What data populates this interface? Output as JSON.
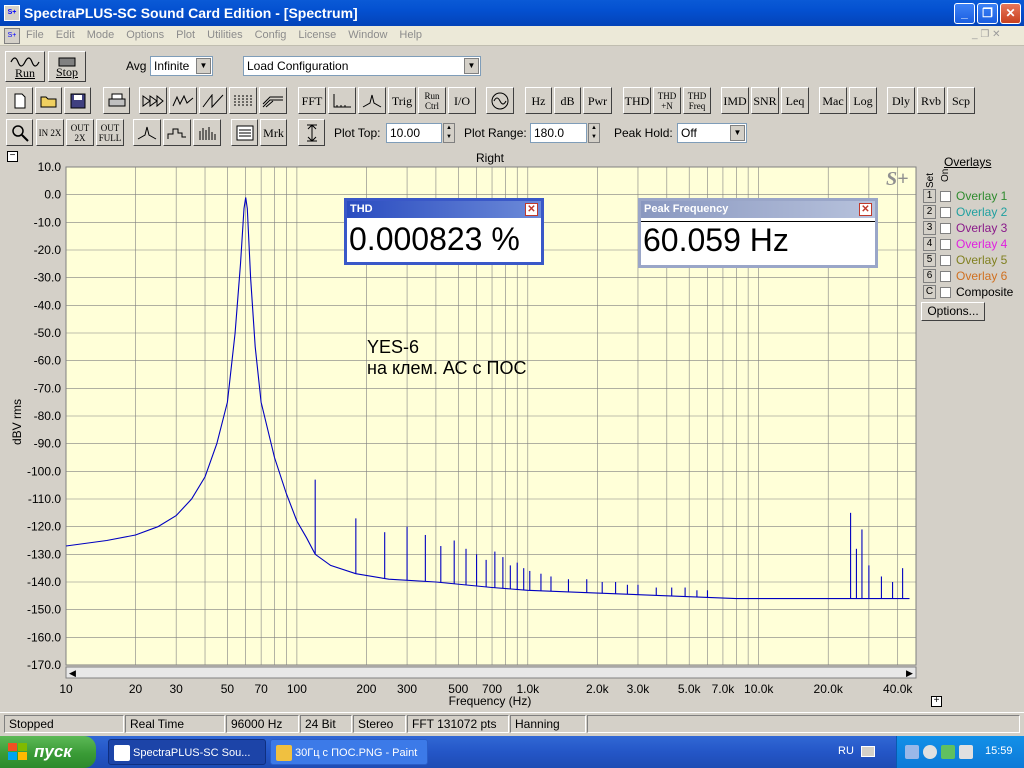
{
  "window": {
    "title": "SpectraPLUS-SC Sound Card Edition - [Spectrum]",
    "app_icon": "spectraplus-icon",
    "min_label": "_",
    "max_label": "❐",
    "close_label": "✕"
  },
  "menu": {
    "items": [
      "File",
      "Edit",
      "Mode",
      "Options",
      "Plot",
      "Utilities",
      "Config",
      "License",
      "Window",
      "Help"
    ],
    "mdi_controls": "_ ❐ ✕"
  },
  "toolbar1": {
    "run_label": "Run",
    "stop_label": "Stop",
    "avg_label": "Avg",
    "avg_value": "Infinite",
    "config_value": "Load Configuration"
  },
  "toolbar2": {
    "buttons": [
      "FFT",
      "Trig",
      "Run Ctrl",
      "I/O",
      "Hz",
      "dB",
      "Pwr",
      "THD",
      "THD +N",
      "THD Freq",
      "IMD",
      "SNR",
      "Leq",
      "Mac",
      "Log",
      "Dly",
      "Rvb",
      "Scp"
    ]
  },
  "toolbar3": {
    "zoom_in": "IN 2X",
    "zoom_out": "OUT 2X",
    "zoom_full": "OUT FULL",
    "marker": "Mrk",
    "plot_top_label": "Plot Top:",
    "plot_top_value": "10.00",
    "plot_range_label": "Plot Range:",
    "plot_range_value": "180.0",
    "peak_hold_label": "Peak Hold:",
    "peak_hold_value": "Off"
  },
  "plot": {
    "channel_title": "Right",
    "collapse_label": "−",
    "expand_label": "+",
    "watermark": "S+",
    "annotation_line1": "YES-6",
    "annotation_line2": "на клем. АС с ПОС"
  },
  "chart_data": {
    "type": "line",
    "title": "Right",
    "xlabel": "Frequency (Hz)",
    "ylabel": "dBV rms",
    "xscale": "log",
    "xlim": [
      10,
      48000
    ],
    "ylim": [
      -170,
      10
    ],
    "grid": true,
    "yticks": [
      10,
      0,
      -10,
      -20,
      -30,
      -40,
      -50,
      -60,
      -70,
      -80,
      -90,
      -100,
      -110,
      -120,
      -130,
      -140,
      -150,
      -160,
      -170
    ],
    "ytick_labels": [
      "10.0",
      "0.0",
      "-10.0",
      "-20.0",
      "-30.0",
      "-40.0",
      "-50.0",
      "-60.0",
      "-70.0",
      "-80.0",
      "-90.0",
      "-100.0",
      "-110.0",
      "-120.0",
      "-130.0",
      "-140.0",
      "-150.0",
      "-160.0",
      "-170.0"
    ],
    "xticks": [
      10,
      20,
      30,
      50,
      70,
      100,
      200,
      300,
      500,
      700,
      1000,
      2000,
      3000,
      5000,
      7000,
      10000,
      20000,
      40000
    ],
    "xtick_labels": [
      "10",
      "20",
      "30",
      "50",
      "70",
      "100",
      "200",
      "300",
      "500",
      "700",
      "1.0k",
      "2.0k",
      "3.0k",
      "5.0k",
      "7.0k",
      "10.0k",
      "20.0k",
      "40.0k"
    ],
    "series": [
      {
        "color": "#0000c0",
        "x": [
          10,
          15,
          20,
          25,
          30,
          35,
          40,
          45,
          50,
          54,
          57,
          59,
          60,
          61,
          63,
          66,
          70,
          80,
          90,
          100,
          110,
          120,
          140,
          180,
          250,
          400,
          700,
          1000,
          2000,
          4000,
          8000,
          15000,
          22000,
          30000,
          40000,
          45000
        ],
        "y": [
          -127,
          -125,
          -123,
          -120,
          -116,
          -110,
          -102,
          -90,
          -75,
          -50,
          -25,
          -5,
          -1,
          -5,
          -30,
          -55,
          -75,
          -95,
          -108,
          -118,
          -124,
          -130,
          -134,
          -137,
          -139,
          -140,
          -142,
          -143,
          -144,
          -145,
          -146,
          -146,
          -146,
          -146,
          -146,
          -146
        ]
      }
    ],
    "harmonics": {
      "x": [
        120,
        180,
        240,
        300,
        360,
        420,
        480,
        540,
        600,
        660,
        720,
        780,
        840,
        900,
        960,
        1020,
        1140,
        1260,
        1500,
        1800,
        2100,
        2400,
        2700,
        3000,
        3600,
        4200,
        4800,
        5400,
        6000,
        25000,
        26500,
        28000,
        30000,
        34000,
        38000,
        42000
      ],
      "y": [
        -103,
        -117,
        -122,
        -120,
        -123,
        -127,
        -125,
        -128,
        -130,
        -132,
        -129,
        -131,
        -134,
        -133,
        -135,
        -136,
        -137,
        -138,
        -139,
        -139,
        -140,
        -140,
        -141,
        -141,
        -142,
        -142,
        -142,
        -143,
        -143,
        -115,
        -128,
        -121,
        -134,
        -138,
        -140,
        -135
      ]
    }
  },
  "readouts": {
    "thd_title": "THD",
    "thd_value": "0.000823 %",
    "peak_title": "Peak Frequency",
    "peak_value": "60.059 Hz"
  },
  "overlays": {
    "header": "Overlays",
    "set_label": "Set",
    "on_label": "On",
    "items": [
      {
        "num": "1",
        "label": "Overlay 1",
        "color": "#2e8b2e"
      },
      {
        "num": "2",
        "label": "Overlay 2",
        "color": "#20a0a0"
      },
      {
        "num": "3",
        "label": "Overlay 3",
        "color": "#8a1a8a"
      },
      {
        "num": "4",
        "label": "Overlay 4",
        "color": "#e020e0"
      },
      {
        "num": "5",
        "label": "Overlay 5",
        "color": "#808020"
      },
      {
        "num": "6",
        "label": "Overlay 6",
        "color": "#d07020"
      },
      {
        "num": "C",
        "label": "Composite",
        "color": "#000000"
      }
    ],
    "options_label": "Options..."
  },
  "status": {
    "state": "Stopped",
    "mode": "Real Time",
    "rate": "96000 Hz",
    "bits": "24 Bit",
    "channels": "Stereo",
    "fft": "FFT 131072 pts",
    "window": "Hanning"
  },
  "taskbar": {
    "start_label": "пуск",
    "tasks": [
      "SpectraPLUS-SC Sou...",
      "30Гц с ПОС.PNG - Paint"
    ],
    "lang": "RU",
    "clock": "15:59"
  }
}
